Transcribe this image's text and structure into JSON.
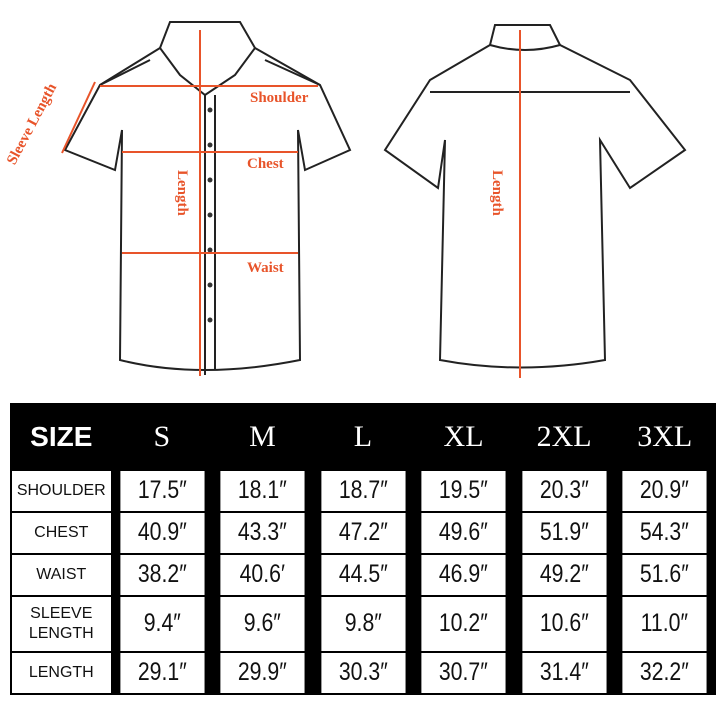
{
  "labels": {
    "sleeve_length": "Sleeve Length",
    "shoulder": "Shoulder",
    "chest": "Chest",
    "length_front": "Length",
    "waist": "Waist",
    "length_back": "Length"
  },
  "accent": "#e8542a",
  "table": {
    "header": [
      "SIZE",
      "S",
      "M",
      "L",
      "XL",
      "2XL",
      "3XL"
    ],
    "rows": [
      {
        "label": "SHOULDER",
        "values": [
          "17.5″",
          "18.1″",
          "18.7″",
          "19.5″",
          "20.3″",
          "20.9″"
        ]
      },
      {
        "label": "CHEST",
        "values": [
          "40.9″",
          "43.3″",
          "47.2″",
          "49.6″",
          "51.9″",
          "54.3″"
        ]
      },
      {
        "label": "WAIST",
        "values": [
          "38.2″",
          "40.6′",
          "44.5″",
          "46.9″",
          "49.2″",
          "51.6″"
        ]
      },
      {
        "label": "SLEEVE LENGTH",
        "values": [
          "9.4″",
          "9.6″",
          "9.8″",
          "10.2″",
          "10.6″",
          "11.0″"
        ]
      },
      {
        "label": "LENGTH",
        "values": [
          "29.1″",
          "29.9″",
          "30.3″",
          "30.7″",
          "31.4″",
          "32.2″"
        ]
      }
    ]
  }
}
